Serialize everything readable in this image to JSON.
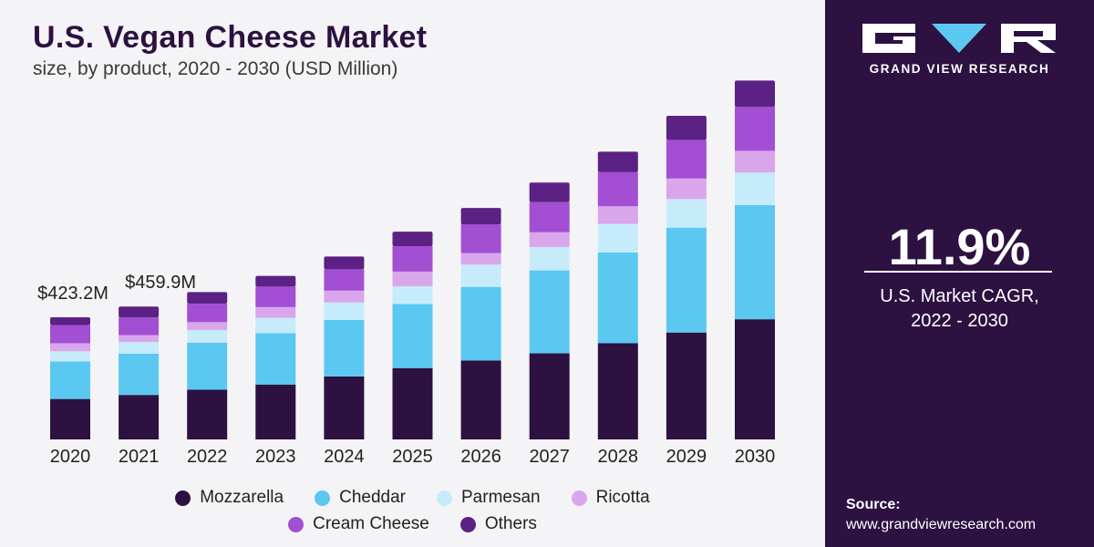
{
  "header": {
    "title": "U.S. Vegan Cheese Market",
    "subtitle": "size, by product, 2020 - 2030 (USD Million)"
  },
  "brand": {
    "name": "GRAND VIEW RESEARCH",
    "logo_icon": "gvr-logo-icon"
  },
  "stat": {
    "value": "11.9%",
    "label_line1": "U.S. Market CAGR,",
    "label_line2": "2022 - 2030"
  },
  "source": {
    "label": "Source:",
    "url": "www.grandviewresearch.com"
  },
  "colors": {
    "Mozzarella": "#2d1141",
    "Cheddar": "#5bc8f2",
    "Parmesan": "#c6ecfb",
    "Ricotta": "#d9a6ec",
    "Cream Cheese": "#a24fd3",
    "Others": "#5b2184",
    "panel": "#2d1141"
  },
  "chart_data": {
    "type": "bar",
    "stacked": true,
    "title": "U.S. Vegan Cheese Market",
    "subtitle": "size, by product, 2020 - 2030 (USD Million)",
    "categories": [
      "2020",
      "2021",
      "2022",
      "2023",
      "2024",
      "2025",
      "2026",
      "2027",
      "2028",
      "2029",
      "2030"
    ],
    "series": [
      {
        "name": "Mozzarella",
        "values": [
          140,
          154,
          172,
          190,
          218,
          247,
          273,
          298,
          333,
          370,
          416
        ]
      },
      {
        "name": "Cheddar",
        "values": [
          130,
          143,
          163,
          178,
          196,
          222,
          255,
          287,
          314,
          363,
          395
        ]
      },
      {
        "name": "Parmesan",
        "values": [
          35,
          40,
          44,
          53,
          60,
          61,
          77,
          81,
          99,
          99,
          113
        ]
      },
      {
        "name": "Ricotta",
        "values": [
          28,
          24,
          27,
          37,
          41,
          51,
          40,
          51,
          61,
          71,
          75
        ]
      },
      {
        "name": "Cream Cheese",
        "values": [
          63,
          61,
          64,
          71,
          74,
          88,
          99,
          104,
          118,
          133,
          152
        ]
      },
      {
        "name": "Others",
        "values": [
          27,
          38,
          40,
          37,
          44,
          50,
          57,
          68,
          71,
          84,
          91
        ]
      }
    ],
    "annotations": [
      {
        "category": "2020",
        "text": "$423.2M"
      },
      {
        "category": "2021",
        "text": "$459.9M"
      }
    ],
    "ylim": [
      0,
      1300
    ],
    "grid": false,
    "legend": "bottom"
  }
}
